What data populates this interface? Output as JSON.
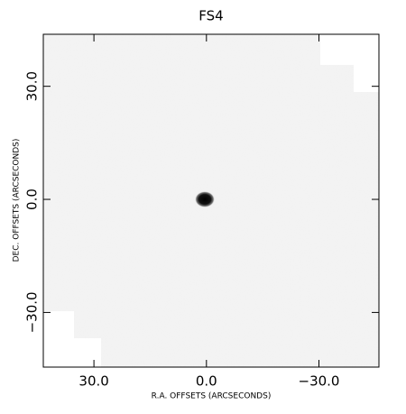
{
  "chart_data": {
    "type": "image",
    "title": "FS4",
    "x_label": "R.A. OFFSETS (ARCSECONDS)",
    "y_label": "DEC. OFFSETS (ARCSECONDS)",
    "xlim": [
      43.5,
      -46
    ],
    "ylim": [
      -44.5,
      43.8
    ],
    "xticks": [
      {
        "value": 30,
        "label": "30.0"
      },
      {
        "value": 0,
        "label": "0.0"
      },
      {
        "value": -30,
        "label": "−30.0"
      }
    ],
    "yticks": [
      {
        "value": -30,
        "label": "−30.0"
      },
      {
        "value": 0,
        "label": "0.0"
      },
      {
        "value": 30,
        "label": "30.0"
      }
    ],
    "colormap": "gray_r"
  }
}
